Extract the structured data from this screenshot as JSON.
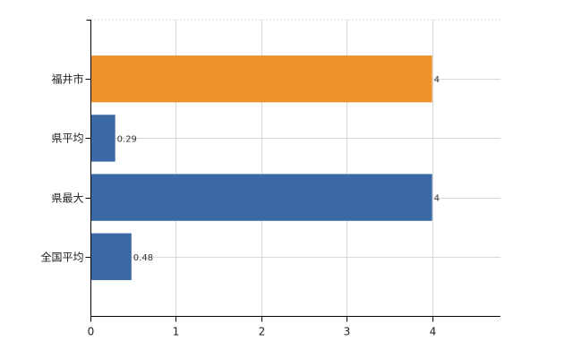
{
  "chart_data": {
    "type": "bar",
    "orientation": "horizontal",
    "title": "",
    "xlabel": "",
    "ylabel": "",
    "xlim": [
      0,
      4.8
    ],
    "x_ticks": [
      0,
      1,
      2,
      3,
      4
    ],
    "grid": true,
    "legend": "none",
    "categories": [
      "福井市",
      "県平均",
      "県最大",
      "全国平均"
    ],
    "values": [
      4,
      0.29,
      4,
      0.48
    ],
    "value_labels": [
      "4",
      "0.29",
      "4",
      "0.48"
    ],
    "colors": [
      "#f0922b",
      "#3a69a6",
      "#3a69a6",
      "#3a69a6"
    ]
  }
}
